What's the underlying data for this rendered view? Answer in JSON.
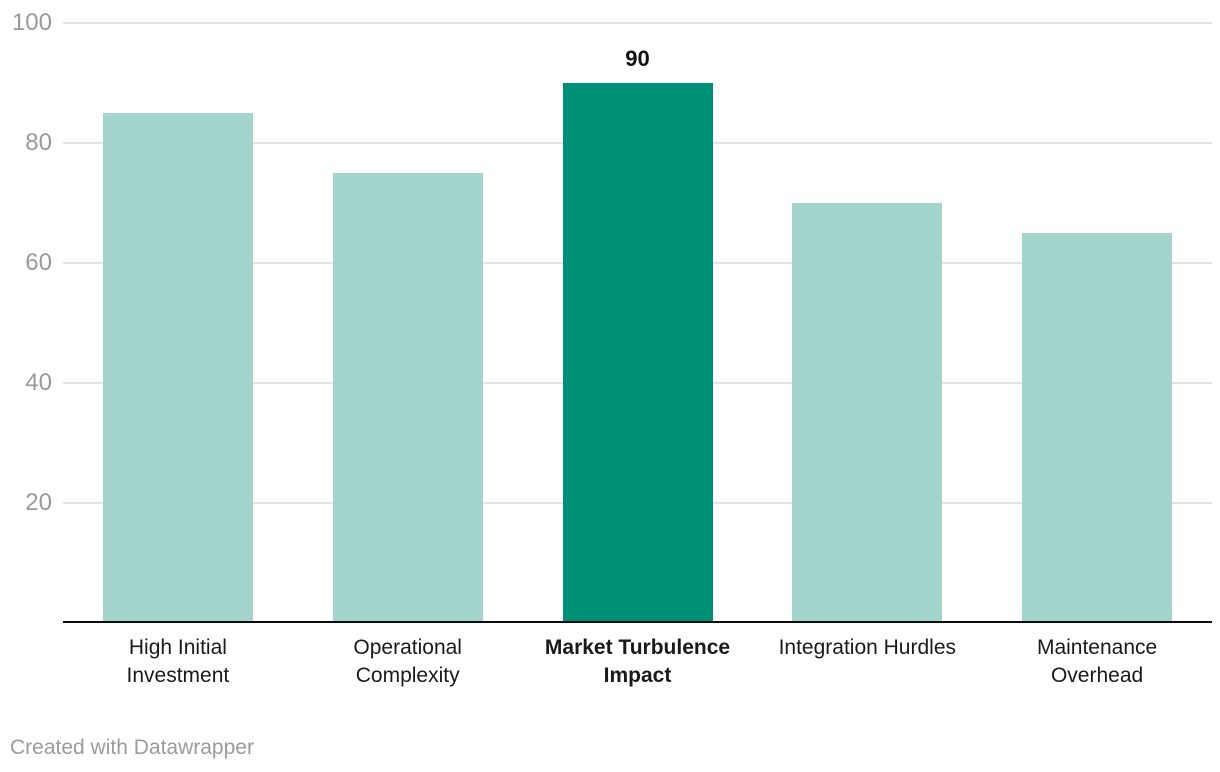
{
  "chart_data": {
    "type": "bar",
    "categories": [
      "High Initial\nInvestment",
      "Operational\nComplexity",
      "Market Turbulence\nImpact",
      "Integration Hurdles",
      "Maintenance\nOverhead"
    ],
    "values": [
      85,
      75,
      90,
      70,
      65
    ],
    "highlight_index": 2,
    "value_label": {
      "index": 2,
      "text": "90"
    },
    "title": "",
    "xlabel": "",
    "ylabel": "",
    "ylim": [
      0,
      100
    ],
    "yticks": [
      20,
      40,
      60,
      80,
      100
    ],
    "grid": true,
    "legend": "none",
    "colors": {
      "bar": "#a4d5cc",
      "highlight": "#009077",
      "grid": "#e4e4e4",
      "axis": "#0c0c0c",
      "tick_label": "#9a9a9a",
      "category_label": "#1a1a1a",
      "value_label": "#111111",
      "credit": "#9b9b9b"
    }
  },
  "footer": {
    "credit": "Created with Datawrapper"
  }
}
